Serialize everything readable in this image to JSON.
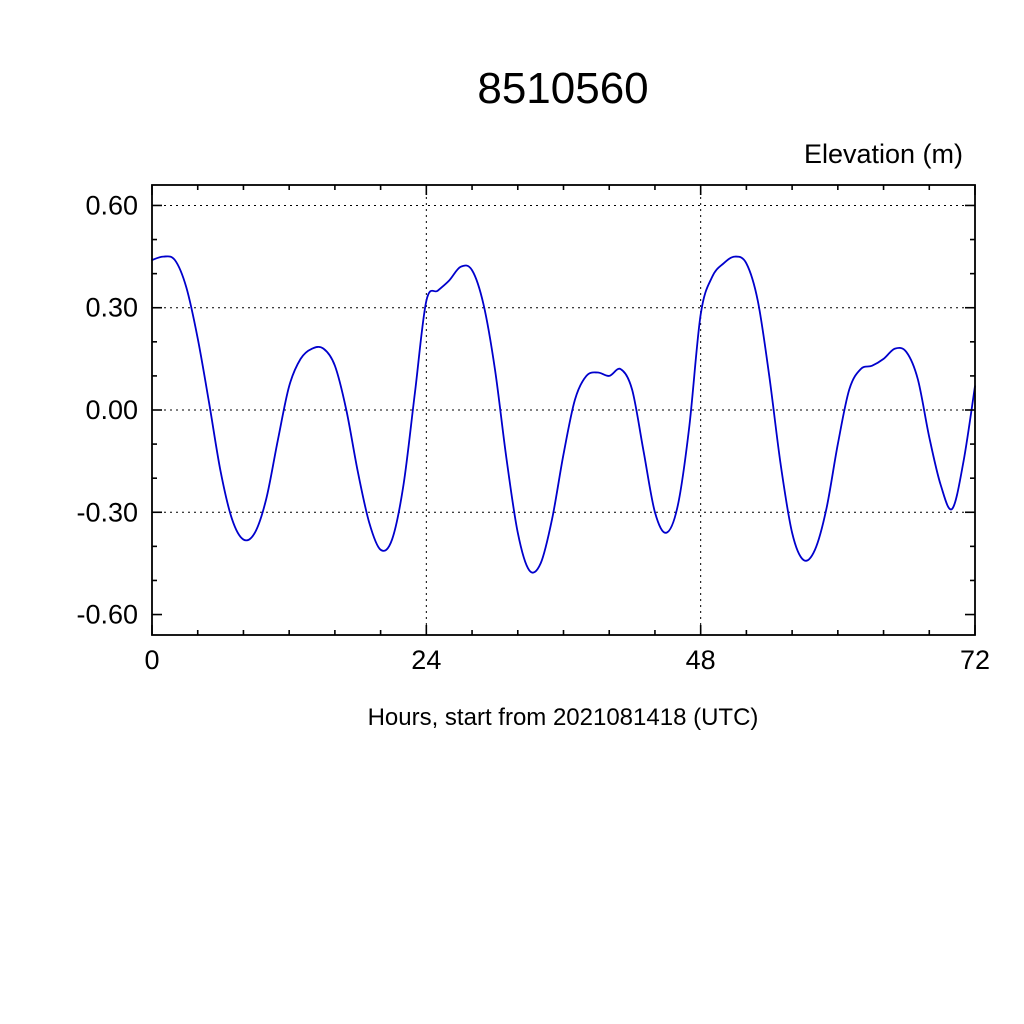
{
  "station_id": "8510560",
  "chart_data": {
    "type": "line",
    "title": "8510560",
    "ylabel": "Elevation (m)",
    "xlabel": "Hours, start from 2021081418 (UTC)",
    "xlim": [
      0,
      72
    ],
    "ylim": [
      -0.66,
      0.66
    ],
    "xticks": [
      0,
      24,
      48,
      72
    ],
    "yticks": [
      -0.6,
      -0.3,
      0.0,
      0.3,
      0.6
    ],
    "ytick_labels": [
      "-0.60",
      "-0.30",
      "0.00",
      "0.30",
      "0.60"
    ],
    "xtick_major": 24,
    "xtick_minor": 4,
    "ytick_major": 0.3,
    "ytick_minor": 0.1,
    "grid_x": [
      24,
      48
    ],
    "grid_y": [
      -0.3,
      0.0,
      0.3,
      0.6
    ],
    "grid_style": "dashed",
    "legend": "none",
    "line_color": "#0000cc",
    "series": [
      {
        "name": "elevation",
        "color": "#0000cc",
        "x": [
          0,
          1,
          2,
          3,
          4,
          5,
          6,
          7,
          8,
          9,
          10,
          11,
          12,
          13,
          14,
          15,
          16,
          17,
          18,
          19,
          20,
          21,
          22,
          23,
          24,
          25,
          26,
          27,
          28,
          29,
          30,
          31,
          32,
          33,
          34,
          35,
          36,
          37,
          38,
          39,
          40,
          41,
          42,
          43,
          44,
          45,
          46,
          47,
          48,
          49,
          50,
          51,
          52,
          53,
          54,
          55,
          56,
          57,
          58,
          59,
          60,
          61,
          62,
          63,
          64,
          65,
          66,
          67,
          68,
          69,
          70,
          71,
          72
        ],
        "y": [
          0.44,
          0.45,
          0.44,
          0.36,
          0.21,
          0.02,
          -0.18,
          -0.32,
          -0.38,
          -0.36,
          -0.26,
          -0.09,
          0.07,
          0.15,
          0.18,
          0.18,
          0.13,
          0.0,
          -0.18,
          -0.33,
          -0.41,
          -0.38,
          -0.22,
          0.05,
          0.32,
          0.35,
          0.38,
          0.42,
          0.41,
          0.31,
          0.12,
          -0.14,
          -0.36,
          -0.47,
          -0.45,
          -0.32,
          -0.13,
          0.03,
          0.1,
          0.11,
          0.1,
          0.12,
          0.06,
          -0.12,
          -0.3,
          -0.36,
          -0.28,
          -0.05,
          0.28,
          0.39,
          0.43,
          0.45,
          0.43,
          0.32,
          0.1,
          -0.16,
          -0.36,
          -0.44,
          -0.41,
          -0.29,
          -0.1,
          0.06,
          0.12,
          0.13,
          0.15,
          0.18,
          0.17,
          0.09,
          -0.08,
          -0.22,
          -0.29,
          -0.15,
          0.07
        ]
      }
    ]
  }
}
